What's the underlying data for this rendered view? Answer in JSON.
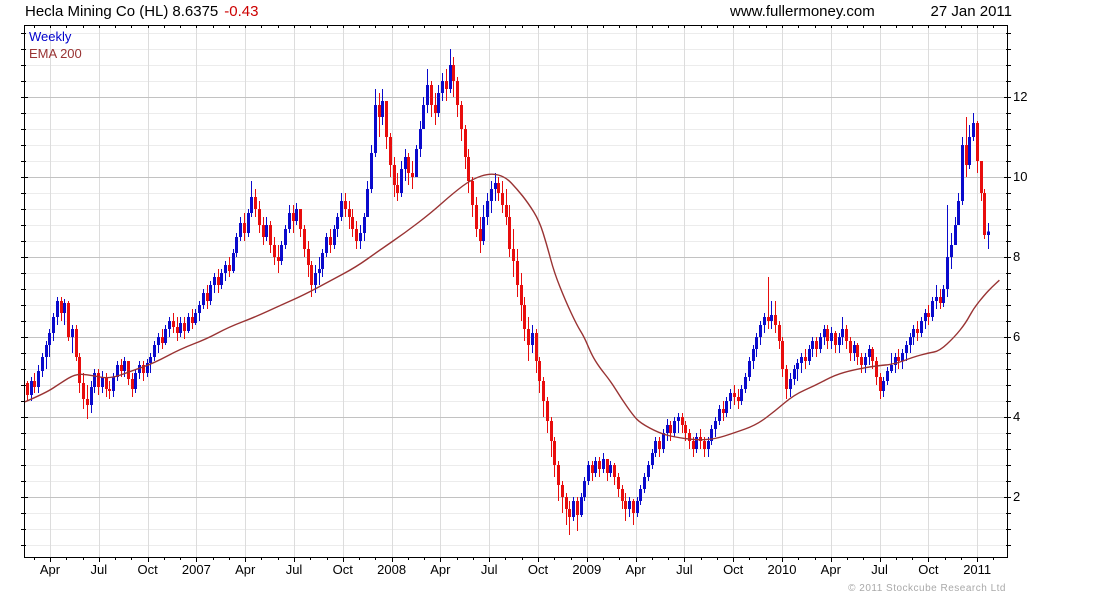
{
  "header": {
    "instrument": "Hecla Mining Co (HL)",
    "price": "8.6375",
    "change": "-0.43",
    "source": "www.fullermoney.com",
    "date": "27 Jan 2011"
  },
  "legend": {
    "timeframe": "Weekly",
    "overlay": "EMA 200"
  },
  "footer": {
    "copyright": "© 2011 Stockcube Research Ltd"
  },
  "colors": {
    "up": "#0a0acc",
    "down": "#e80d0d",
    "ema": "#993333",
    "grid_minor": "#ececec",
    "grid_major": "#c2c2c2",
    "grid_vertical": "#dcdcdc",
    "axis": "#000000",
    "change": "#cc0000",
    "muted": "#a9a9a9"
  },
  "chart_data": {
    "type": "candlestick",
    "title": "Hecla Mining Co (HL)",
    "timeframe": "weekly",
    "overlay": "EMA 200",
    "last_close": 8.6375,
    "change": -0.43,
    "y_axis": {
      "ticks": [
        2,
        4,
        6,
        8,
        10,
        12
      ],
      "range": [
        0.5,
        13.8
      ],
      "minor_step": 0.4
    },
    "x_axis": {
      "labels": [
        "Apr",
        "Jul",
        "Oct",
        "2007",
        "Apr",
        "Jul",
        "Oct",
        "2008",
        "Apr",
        "Jul",
        "Oct",
        "2009",
        "Apr",
        "Jul",
        "Oct",
        "2010",
        "Apr",
        "Jul",
        "Oct",
        "2011"
      ],
      "start": "Feb 2006",
      "end": "Jan 2011",
      "unit": "quarter"
    },
    "first_open": 4.85,
    "weeks": [
      [
        4.9,
        4.4,
        4.55
      ],
      [
        5.0,
        4.4,
        4.9
      ],
      [
        5.1,
        4.6,
        4.75
      ],
      [
        5.3,
        4.6,
        5.15
      ],
      [
        5.6,
        5.0,
        5.5
      ],
      [
        5.9,
        5.2,
        5.8
      ],
      [
        6.2,
        5.5,
        6.1
      ],
      [
        6.6,
        5.9,
        6.5
      ],
      [
        7.0,
        6.3,
        6.9
      ],
      [
        7.0,
        6.4,
        6.6
      ],
      [
        6.95,
        6.3,
        6.85
      ],
      [
        6.9,
        5.9,
        6.0
      ],
      [
        6.3,
        5.6,
        6.2
      ],
      [
        6.3,
        5.4,
        5.5
      ],
      [
        5.6,
        4.6,
        4.85
      ],
      [
        5.1,
        4.2,
        4.45
      ],
      [
        4.8,
        3.95,
        4.3
      ],
      [
        4.9,
        4.1,
        4.75
      ],
      [
        5.2,
        4.6,
        5.1
      ],
      [
        5.2,
        4.55,
        4.75
      ],
      [
        5.15,
        4.6,
        5.0
      ],
      [
        5.1,
        4.5,
        4.7
      ],
      [
        4.9,
        4.45,
        4.65
      ],
      [
        5.1,
        4.5,
        5.0
      ],
      [
        5.4,
        4.9,
        5.3
      ],
      [
        5.45,
        5.0,
        5.15
      ],
      [
        5.5,
        5.0,
        5.4
      ],
      [
        5.4,
        4.8,
        4.95
      ],
      [
        5.1,
        4.5,
        4.7
      ],
      [
        5.2,
        4.6,
        5.1
      ],
      [
        5.4,
        4.95,
        5.3
      ],
      [
        5.4,
        4.9,
        5.1
      ],
      [
        5.45,
        5.0,
        5.35
      ],
      [
        5.6,
        5.1,
        5.5
      ],
      [
        5.9,
        5.4,
        5.8
      ],
      [
        6.1,
        5.6,
        6.0
      ],
      [
        6.2,
        5.7,
        5.85
      ],
      [
        6.3,
        5.8,
        6.2
      ],
      [
        6.5,
        6.0,
        6.4
      ],
      [
        6.6,
        6.1,
        6.25
      ],
      [
        6.5,
        5.9,
        6.1
      ],
      [
        6.5,
        6.0,
        6.35
      ],
      [
        6.5,
        5.95,
        6.15
      ],
      [
        6.6,
        6.1,
        6.5
      ],
      [
        6.7,
        6.2,
        6.35
      ],
      [
        6.7,
        6.3,
        6.6
      ],
      [
        6.9,
        6.4,
        6.8
      ],
      [
        7.2,
        6.7,
        7.1
      ],
      [
        7.3,
        6.7,
        6.9
      ],
      [
        7.4,
        6.8,
        7.3
      ],
      [
        7.6,
        7.1,
        7.5
      ],
      [
        7.7,
        7.1,
        7.3
      ],
      [
        7.7,
        7.2,
        7.6
      ],
      [
        7.9,
        7.4,
        7.8
      ],
      [
        8.0,
        7.5,
        7.65
      ],
      [
        8.2,
        7.6,
        8.1
      ],
      [
        8.6,
        8.0,
        8.5
      ],
      [
        9.0,
        8.4,
        8.85
      ],
      [
        9.1,
        8.4,
        8.6
      ],
      [
        9.2,
        8.5,
        9.1
      ],
      [
        9.9,
        9.0,
        9.5
      ],
      [
        9.7,
        9.0,
        9.2
      ],
      [
        9.4,
        8.6,
        8.8
      ],
      [
        9.0,
        8.3,
        8.5
      ],
      [
        9.0,
        8.4,
        8.8
      ],
      [
        8.9,
        8.1,
        8.3
      ],
      [
        8.5,
        7.8,
        8.0
      ],
      [
        8.3,
        7.6,
        7.9
      ],
      [
        8.4,
        7.8,
        8.3
      ],
      [
        8.8,
        8.2,
        8.7
      ],
      [
        9.3,
        8.6,
        9.1
      ],
      [
        9.3,
        8.6,
        8.9
      ],
      [
        9.35,
        8.8,
        9.2
      ],
      [
        9.2,
        8.5,
        8.7
      ],
      [
        8.8,
        8.0,
        8.2
      ],
      [
        8.4,
        7.5,
        7.8
      ],
      [
        7.9,
        7.0,
        7.3
      ],
      [
        7.8,
        7.1,
        7.6
      ],
      [
        8.0,
        7.3,
        7.7
      ],
      [
        8.2,
        7.5,
        8.1
      ],
      [
        8.6,
        8.0,
        8.5
      ],
      [
        8.7,
        8.1,
        8.3
      ],
      [
        8.8,
        8.2,
        8.7
      ],
      [
        9.1,
        8.5,
        9.0
      ],
      [
        9.6,
        8.9,
        9.4
      ],
      [
        9.6,
        9.0,
        9.2
      ],
      [
        9.4,
        8.7,
        9.0
      ],
      [
        9.2,
        8.5,
        8.7
      ],
      [
        8.9,
        8.2,
        8.4
      ],
      [
        8.8,
        8.2,
        8.6
      ],
      [
        9.1,
        8.4,
        9.0
      ],
      [
        9.9,
        9.2,
        9.7
      ],
      [
        10.8,
        9.6,
        10.6
      ],
      [
        12.2,
        10.5,
        11.8
      ],
      [
        12.1,
        11.0,
        11.5
      ],
      [
        12.2,
        11.3,
        11.9
      ],
      [
        11.9,
        10.7,
        11.0
      ],
      [
        11.1,
        10.0,
        10.3
      ],
      [
        10.5,
        9.5,
        9.8
      ],
      [
        10.1,
        9.4,
        9.6
      ],
      [
        10.4,
        9.5,
        10.2
      ],
      [
        10.7,
        9.9,
        10.5
      ],
      [
        10.6,
        9.8,
        10.1
      ],
      [
        10.4,
        9.7,
        10.0
      ],
      [
        10.8,
        10.0,
        10.7
      ],
      [
        11.4,
        10.5,
        11.2
      ],
      [
        12.0,
        11.2,
        11.8
      ],
      [
        12.7,
        11.6,
        12.3
      ],
      [
        12.4,
        11.5,
        11.8
      ],
      [
        12.1,
        11.3,
        11.6
      ],
      [
        12.3,
        11.5,
        12.1
      ],
      [
        12.6,
        11.9,
        12.4
      ],
      [
        12.7,
        11.9,
        12.2
      ],
      [
        13.2,
        12.1,
        12.8
      ],
      [
        13.0,
        12.0,
        12.4
      ],
      [
        12.5,
        11.5,
        11.8
      ],
      [
        11.9,
        10.9,
        11.2
      ],
      [
        11.3,
        10.2,
        10.5
      ],
      [
        10.7,
        9.6,
        9.9
      ],
      [
        10.0,
        9.0,
        9.3
      ],
      [
        9.5,
        8.5,
        8.7
      ],
      [
        9.0,
        8.1,
        8.4
      ],
      [
        9.3,
        8.3,
        9.0
      ],
      [
        9.6,
        8.8,
        9.4
      ],
      [
        9.9,
        9.1,
        9.7
      ],
      [
        10.1,
        9.4,
        9.85
      ],
      [
        10.0,
        9.4,
        9.6
      ],
      [
        9.9,
        9.1,
        9.3
      ],
      [
        9.7,
        8.8,
        9.0
      ],
      [
        9.3,
        8.0,
        8.2
      ],
      [
        8.7,
        7.5,
        7.9
      ],
      [
        8.2,
        7.0,
        7.3
      ],
      [
        7.6,
        6.4,
        6.8
      ],
      [
        7.0,
        5.9,
        6.2
      ],
      [
        6.5,
        5.4,
        5.8
      ],
      [
        6.3,
        5.6,
        6.1
      ],
      [
        6.2,
        5.1,
        5.4
      ],
      [
        5.5,
        4.6,
        4.9
      ],
      [
        5.0,
        4.0,
        4.4
      ],
      [
        4.5,
        3.6,
        3.9
      ],
      [
        4.0,
        3.0,
        3.4
      ],
      [
        3.5,
        2.5,
        2.8
      ],
      [
        2.9,
        1.9,
        2.3
      ],
      [
        2.4,
        1.6,
        2.0
      ],
      [
        2.1,
        1.3,
        1.7
      ],
      [
        1.9,
        1.05,
        1.5
      ],
      [
        2.0,
        1.4,
        1.9
      ],
      [
        2.0,
        1.15,
        1.55
      ],
      [
        2.1,
        1.5,
        2.0
      ],
      [
        2.5,
        1.9,
        2.4
      ],
      [
        2.9,
        2.3,
        2.8
      ],
      [
        2.9,
        2.4,
        2.6
      ],
      [
        3.0,
        2.5,
        2.9
      ],
      [
        3.0,
        2.5,
        2.7
      ],
      [
        3.1,
        2.6,
        2.95
      ],
      [
        2.95,
        2.4,
        2.6
      ],
      [
        2.9,
        2.5,
        2.8
      ],
      [
        2.85,
        2.3,
        2.5
      ],
      [
        2.6,
        2.0,
        2.2
      ],
      [
        2.3,
        1.7,
        1.9
      ],
      [
        2.1,
        1.4,
        1.7
      ],
      [
        2.0,
        1.5,
        1.9
      ],
      [
        1.95,
        1.3,
        1.6
      ],
      [
        2.0,
        1.5,
        1.9
      ],
      [
        2.3,
        1.8,
        2.2
      ],
      [
        2.6,
        2.1,
        2.5
      ],
      [
        2.9,
        2.4,
        2.8
      ],
      [
        3.2,
        2.7,
        3.1
      ],
      [
        3.5,
        3.0,
        3.4
      ],
      [
        3.5,
        3.0,
        3.2
      ],
      [
        3.7,
        3.1,
        3.6
      ],
      [
        3.95,
        3.4,
        3.8
      ],
      [
        3.9,
        3.4,
        3.6
      ],
      [
        4.0,
        3.5,
        3.9
      ],
      [
        4.1,
        3.6,
        4.0
      ],
      [
        4.1,
        3.6,
        3.8
      ],
      [
        3.9,
        3.4,
        3.6
      ],
      [
        3.7,
        3.2,
        3.4
      ],
      [
        3.5,
        3.0,
        3.2
      ],
      [
        3.6,
        3.1,
        3.5
      ],
      [
        3.7,
        3.2,
        3.4
      ],
      [
        3.5,
        3.0,
        3.2
      ],
      [
        3.5,
        3.0,
        3.4
      ],
      [
        3.8,
        3.3,
        3.7
      ],
      [
        4.0,
        3.5,
        3.9
      ],
      [
        4.3,
        3.8,
        4.2
      ],
      [
        4.4,
        3.9,
        4.1
      ],
      [
        4.5,
        4.0,
        4.4
      ],
      [
        4.7,
        4.2,
        4.6
      ],
      [
        4.8,
        4.3,
        4.5
      ],
      [
        4.7,
        4.2,
        4.4
      ],
      [
        4.8,
        4.3,
        4.7
      ],
      [
        5.1,
        4.6,
        5.0
      ],
      [
        5.5,
        4.9,
        5.4
      ],
      [
        5.8,
        5.2,
        5.7
      ],
      [
        6.1,
        5.5,
        6.0
      ],
      [
        6.4,
        5.8,
        6.3
      ],
      [
        6.6,
        6.1,
        6.5
      ],
      [
        7.5,
        6.2,
        6.4
      ],
      [
        6.9,
        6.2,
        6.55
      ],
      [
        6.9,
        6.1,
        6.3
      ],
      [
        6.4,
        5.7,
        5.9
      ],
      [
        6.0,
        5.0,
        5.2
      ],
      [
        5.3,
        4.45,
        4.7
      ],
      [
        5.1,
        4.5,
        4.95
      ],
      [
        5.3,
        4.8,
        5.2
      ],
      [
        5.45,
        4.9,
        5.35
      ],
      [
        5.6,
        5.1,
        5.5
      ],
      [
        5.7,
        5.2,
        5.4
      ],
      [
        5.8,
        5.3,
        5.7
      ],
      [
        6.0,
        5.5,
        5.9
      ],
      [
        6.0,
        5.5,
        5.7
      ],
      [
        6.1,
        5.6,
        6.0
      ],
      [
        6.3,
        5.8,
        6.2
      ],
      [
        6.3,
        5.7,
        5.9
      ],
      [
        6.25,
        5.7,
        6.1
      ],
      [
        6.15,
        5.6,
        5.8
      ],
      [
        6.1,
        5.6,
        6.0
      ],
      [
        6.5,
        5.8,
        6.2
      ],
      [
        6.3,
        5.7,
        5.9
      ],
      [
        6.0,
        5.4,
        5.6
      ],
      [
        5.9,
        5.4,
        5.8
      ],
      [
        5.85,
        5.3,
        5.5
      ],
      [
        5.6,
        5.1,
        5.3
      ],
      [
        5.6,
        5.1,
        5.5
      ],
      [
        5.8,
        5.3,
        5.7
      ],
      [
        5.75,
        5.2,
        5.4
      ],
      [
        5.5,
        4.8,
        5.0
      ],
      [
        5.1,
        4.45,
        4.65
      ],
      [
        5.0,
        4.5,
        4.9
      ],
      [
        5.25,
        4.8,
        5.15
      ],
      [
        5.6,
        5.1,
        5.3
      ],
      [
        5.6,
        5.1,
        5.5
      ],
      [
        5.7,
        5.2,
        5.4
      ],
      [
        5.7,
        5.2,
        5.6
      ],
      [
        5.9,
        5.4,
        5.8
      ],
      [
        6.1,
        5.6,
        6.0
      ],
      [
        6.3,
        5.8,
        6.2
      ],
      [
        6.4,
        5.9,
        6.1
      ],
      [
        6.5,
        6.0,
        6.4
      ],
      [
        6.7,
        6.2,
        6.6
      ],
      [
        6.8,
        6.3,
        6.5
      ],
      [
        7.0,
        6.4,
        6.9
      ],
      [
        7.3,
        6.7,
        7.0
      ],
      [
        7.2,
        6.7,
        6.85
      ],
      [
        7.3,
        6.75,
        7.2
      ],
      [
        9.3,
        7.0,
        8.0
      ],
      [
        8.6,
        7.7,
        8.3
      ],
      [
        9.0,
        8.3,
        8.8
      ],
      [
        9.6,
        8.8,
        9.4
      ],
      [
        11.0,
        9.3,
        10.8
      ],
      [
        11.5,
        10.0,
        10.3
      ],
      [
        11.3,
        10.2,
        11.0
      ],
      [
        11.6,
        10.9,
        11.35
      ],
      [
        11.4,
        10.1,
        10.4
      ],
      [
        10.4,
        9.4,
        9.6
      ],
      [
        9.7,
        8.45,
        8.55
      ],
      [
        8.85,
        8.2,
        8.64
      ]
    ],
    "ema_points": [
      [
        0,
        4.38
      ],
      [
        5,
        4.6
      ],
      [
        9,
        4.85
      ],
      [
        13,
        5.08
      ],
      [
        17,
        5.05
      ],
      [
        22,
        4.95
      ],
      [
        28,
        5.15
      ],
      [
        34,
        5.35
      ],
      [
        41,
        5.7
      ],
      [
        48,
        5.95
      ],
      [
        54,
        6.25
      ],
      [
        61,
        6.5
      ],
      [
        68,
        6.8
      ],
      [
        74,
        7.05
      ],
      [
        81,
        7.4
      ],
      [
        88,
        7.75
      ],
      [
        94,
        8.15
      ],
      [
        101,
        8.6
      ],
      [
        108,
        9.1
      ],
      [
        114,
        9.6
      ],
      [
        119,
        9.95
      ],
      [
        124,
        10.1
      ],
      [
        128,
        10.0
      ],
      [
        131,
        9.7
      ],
      [
        134,
        9.35
      ],
      [
        137,
        8.9
      ],
      [
        139,
        8.3
      ],
      [
        141,
        7.6
      ],
      [
        144,
        6.9
      ],
      [
        147,
        6.3
      ],
      [
        149,
        6.0
      ],
      [
        151,
        5.55
      ],
      [
        153,
        5.25
      ],
      [
        156,
        4.9
      ],
      [
        159,
        4.45
      ],
      [
        162,
        4.05
      ],
      [
        164,
        3.85
      ],
      [
        169,
        3.6
      ],
      [
        173,
        3.5
      ],
      [
        179,
        3.42
      ],
      [
        184,
        3.45
      ],
      [
        189,
        3.6
      ],
      [
        195,
        3.8
      ],
      [
        200,
        4.15
      ],
      [
        205,
        4.55
      ],
      [
        211,
        4.8
      ],
      [
        216,
        5.05
      ],
      [
        221,
        5.18
      ],
      [
        227,
        5.28
      ],
      [
        232,
        5.32
      ],
      [
        237,
        5.5
      ],
      [
        241,
        5.6
      ],
      [
        244,
        5.65
      ],
      [
        248,
        6.0
      ],
      [
        251,
        6.35
      ],
      [
        253,
        6.7
      ],
      [
        256,
        7.05
      ],
      [
        258,
        7.25
      ],
      [
        260,
        7.42
      ]
    ]
  }
}
